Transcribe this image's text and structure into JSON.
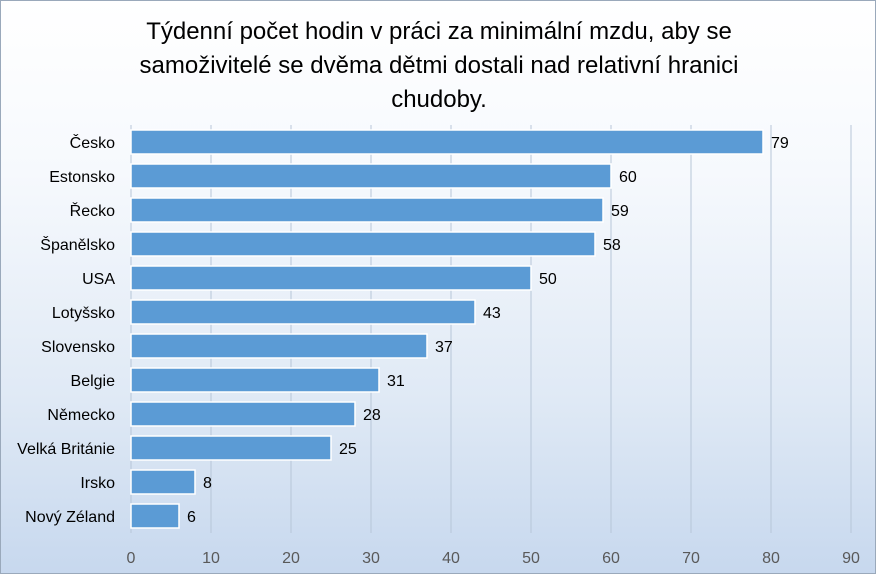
{
  "chart_data": {
    "type": "bar",
    "orientation": "horizontal",
    "title": "Týdenní počet hodin v práci za minimální mzdu, aby se\nsamoživitelé se dvěma dětmi dostali nad relativní hranici\nchudoby.",
    "categories": [
      "Česko",
      "Estonsko",
      "Řecko",
      "Španělsko",
      "USA",
      "Lotyšsko",
      "Slovensko",
      "Belgie",
      "Německo",
      "Velká Británie",
      "Irsko",
      "Nový Zéland"
    ],
    "values": [
      79,
      60,
      59,
      58,
      50,
      43,
      37,
      31,
      28,
      25,
      8,
      6
    ],
    "xlim": [
      0,
      90
    ],
    "xticks": [
      "0",
      "10",
      "20",
      "30",
      "40",
      "50",
      "60",
      "70",
      "80",
      "90"
    ],
    "grid": "vertical",
    "legend": "none",
    "bar_color": "#5b9bd5",
    "bar_border_color": "#ffffff"
  }
}
